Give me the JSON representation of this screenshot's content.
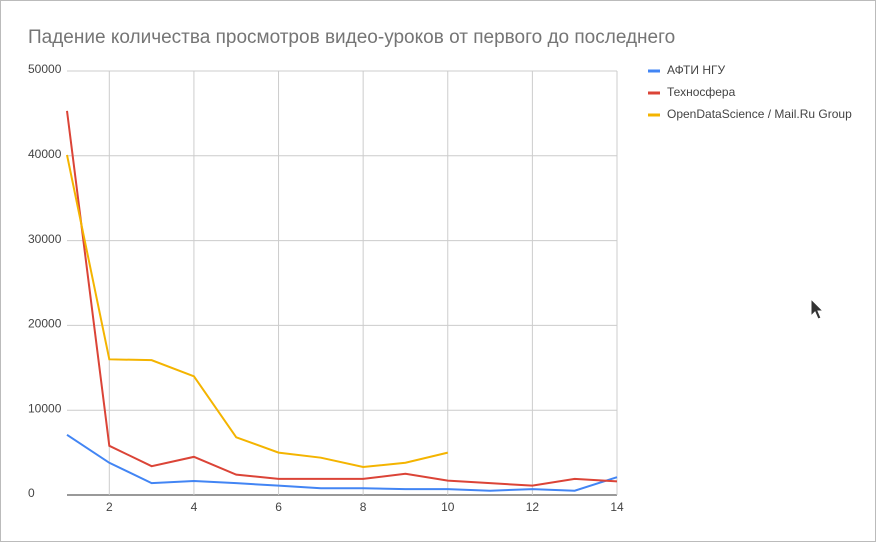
{
  "chart_data": {
    "type": "line",
    "title": "Падение количества просмотров видео-уроков от первого до последнего",
    "x": [
      1,
      2,
      3,
      4,
      5,
      6,
      7,
      8,
      9,
      10,
      11,
      12,
      13,
      14
    ],
    "series": [
      {
        "name": "АФТИ НГУ",
        "color": "#4285f4",
        "values": [
          7100,
          3800,
          1400,
          1650,
          1400,
          1100,
          800,
          800,
          700,
          700,
          500,
          700,
          500,
          2100
        ]
      },
      {
        "name": "Техносфера",
        "color": "#db4437",
        "values": [
          45300,
          5800,
          3400,
          4500,
          2400,
          1900,
          1900,
          1900,
          2500,
          1700,
          1400,
          1100,
          1900,
          1600
        ]
      },
      {
        "name": "OpenDataScience / Mail.Ru Group",
        "color": "#f4b400",
        "values": [
          40100,
          16000,
          15900,
          14000,
          6800,
          5000,
          4400,
          3300,
          3800,
          5000,
          null,
          null,
          null,
          null
        ]
      }
    ],
    "xlim": [
      1,
      14
    ],
    "xticks": [
      2,
      4,
      6,
      8,
      10,
      12,
      14
    ],
    "ylim": [
      0,
      50000
    ],
    "yticks": [
      0,
      10000,
      20000,
      30000,
      40000,
      50000
    ],
    "grid": true,
    "legend": "right"
  }
}
